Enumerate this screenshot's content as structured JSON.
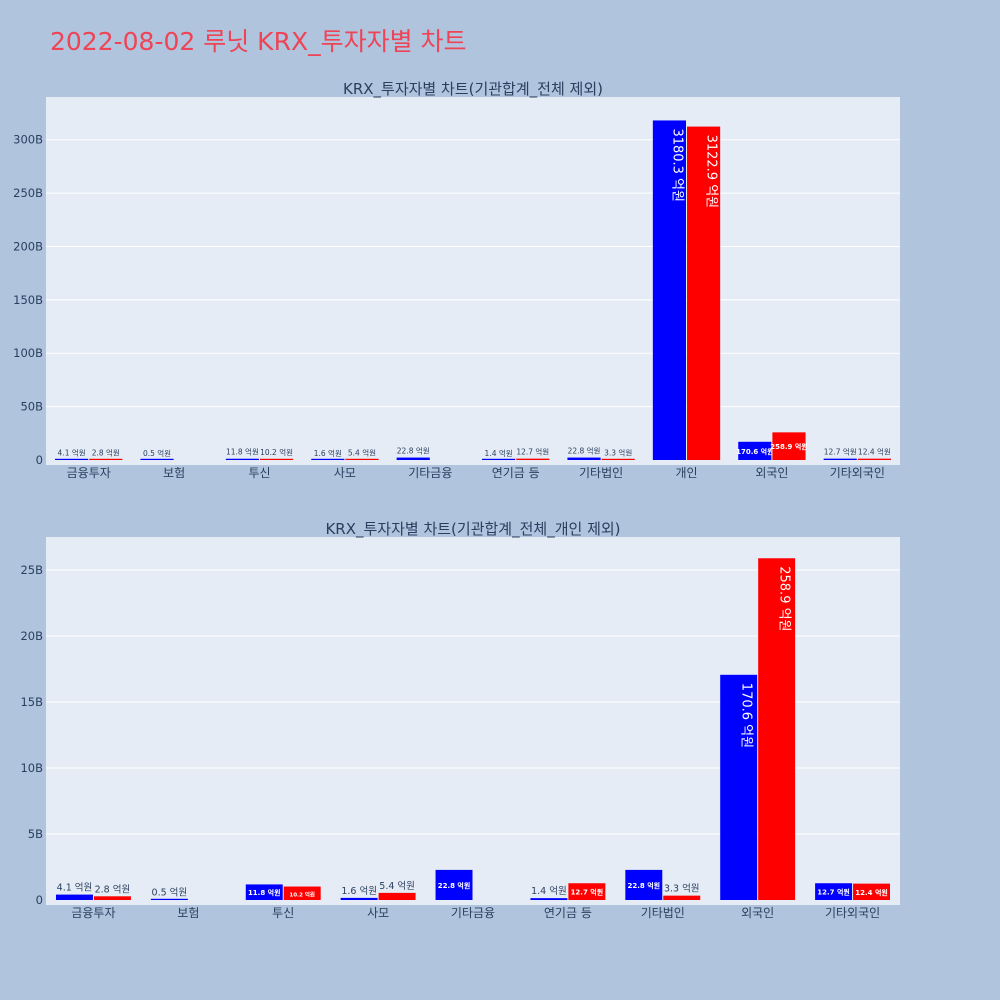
{
  "page": {
    "title": "2022-08-02 루닛 KRX_투자자별 차트",
    "title_color": "#ee4455",
    "background": "#b0c4de",
    "plot_background": "#e5ecf6"
  },
  "chart_data": [
    {
      "type": "bar",
      "title": "KRX_투자자별 차트(기관합계_전체 제외)",
      "categories": [
        "금융투자",
        "보험",
        "투신",
        "사모",
        "기타금융",
        "연기금 등",
        "기타법인",
        "개인",
        "외국인",
        "기타외국인"
      ],
      "ylim": [
        0,
        340
      ],
      "yticks": [
        0,
        50,
        100,
        150,
        200,
        250,
        300
      ],
      "ytick_labels": [
        "0",
        "50B",
        "100B",
        "150B",
        "200B",
        "250B",
        "300B"
      ],
      "series": [
        {
          "color": "#0000ff",
          "values": [
            0.41,
            0.05,
            1.18,
            0.16,
            2.28,
            0.14,
            2.28,
            318.03,
            17.06,
            1.27
          ],
          "labels": [
            "4.1 억원",
            "0.5 억원",
            "11.8 억원",
            "1.6 억원",
            "22.8 억원",
            "1.4 억원",
            "22.8 억원",
            "3180.3 억원",
            "170.6 억원",
            "12.7 억원"
          ]
        },
        {
          "color": "#ff0000",
          "values": [
            0.28,
            0,
            1.02,
            0.54,
            0,
            1.27,
            0.33,
            312.29,
            25.89,
            1.24
          ],
          "labels": [
            "2.8 억원",
            "",
            "10.2 억원",
            "5.4 억원",
            "",
            "12.7 억원",
            "3.3 억원",
            "3122.9 억원",
            "258.9 억원",
            "12.4 억원"
          ]
        }
      ]
    },
    {
      "type": "bar",
      "title": "KRX_투자자별 차트(기관합계_전체_개인 제외)",
      "categories": [
        "금융투자",
        "보험",
        "투신",
        "사모",
        "기타금융",
        "연기금 등",
        "기타법인",
        "외국인",
        "기타외국인"
      ],
      "ylim": [
        0,
        27.5
      ],
      "yticks": [
        0,
        5,
        10,
        15,
        20,
        25
      ],
      "ytick_labels": [
        "0",
        "5B",
        "10B",
        "15B",
        "20B",
        "25B"
      ],
      "series": [
        {
          "color": "#0000ff",
          "values": [
            0.41,
            0.05,
            1.18,
            0.16,
            2.28,
            0.14,
            2.28,
            17.06,
            1.27
          ],
          "labels": [
            "4.1 억원",
            "0.5 억원",
            "11.8 억원",
            "1.6 억원",
            "22.8 억원",
            "1.4 억원",
            "22.8 억원",
            "170.6 억원",
            "12.7 억원"
          ]
        },
        {
          "color": "#ff0000",
          "values": [
            0.28,
            0,
            1.02,
            0.54,
            0,
            1.27,
            0.33,
            25.89,
            1.24
          ],
          "labels": [
            "2.8 억원",
            "",
            "10.2 억원",
            "5.4 억원",
            "",
            "12.7 억원",
            "3.3 억원",
            "258.9 억원",
            "12.4 억원"
          ]
        }
      ]
    }
  ]
}
